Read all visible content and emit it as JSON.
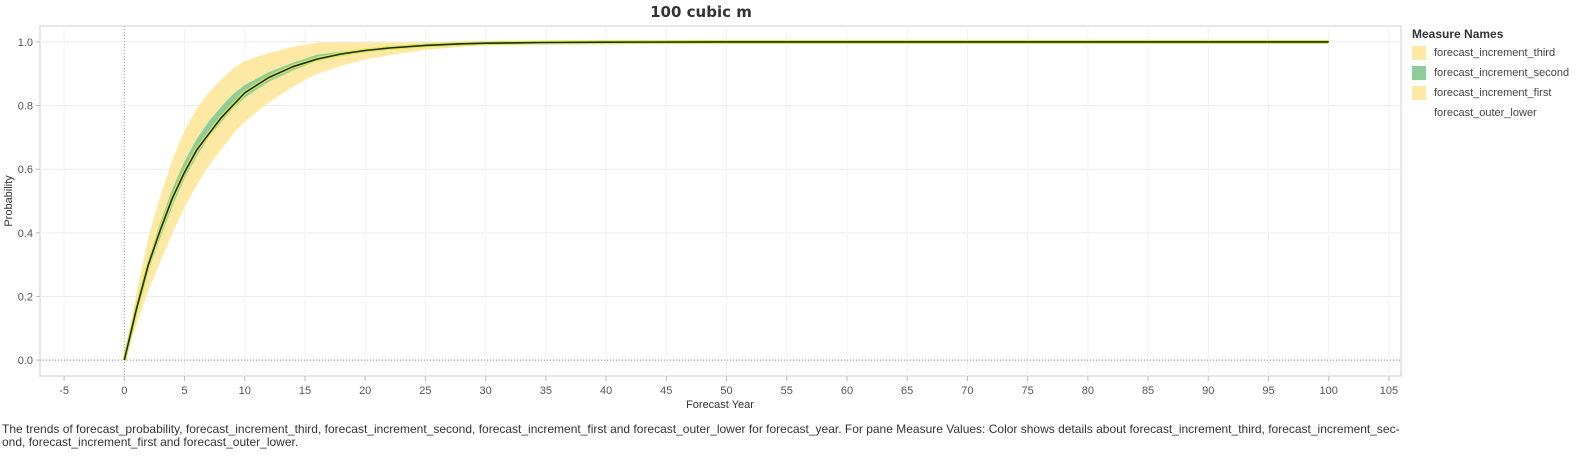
{
  "chart_data": {
    "type": "area",
    "title": "100 cubic m",
    "xlabel": "Forecast Year",
    "ylabel": "Probability",
    "xlim": [
      -7,
      106
    ],
    "ylim": [
      -0.05,
      1.05
    ],
    "x_ticks": [
      -5,
      0,
      5,
      10,
      15,
      20,
      25,
      30,
      35,
      40,
      45,
      50,
      55,
      60,
      65,
      70,
      75,
      80,
      85,
      90,
      95,
      100,
      105
    ],
    "y_ticks": [
      "0.0",
      "0.2",
      "0.4",
      "0.6",
      "0.8",
      "1.0"
    ],
    "grid": true,
    "legend_position": "right",
    "x": [
      0,
      1,
      2,
      3,
      4,
      5,
      6,
      7,
      8,
      9,
      10,
      12,
      14,
      16,
      18,
      20,
      22,
      25,
      28,
      30,
      35,
      40,
      50,
      60,
      70,
      80,
      90,
      100
    ],
    "series": [
      {
        "name": "forecast_probability",
        "values": [
          0,
          0.16,
          0.3,
          0.41,
          0.51,
          0.59,
          0.66,
          0.71,
          0.76,
          0.8,
          0.84,
          0.888,
          0.922,
          0.946,
          0.962,
          0.973,
          0.981,
          0.989,
          0.994,
          0.996,
          0.998,
          0.999,
          1.0,
          1.0,
          1.0,
          1.0,
          1.0,
          1.0
        ]
      },
      {
        "name": "forecast_outer_lower",
        "values": [
          0,
          0.11,
          0.22,
          0.31,
          0.4,
          0.48,
          0.55,
          0.61,
          0.66,
          0.71,
          0.75,
          0.81,
          0.86,
          0.9,
          0.925,
          0.945,
          0.958,
          0.975,
          0.985,
          0.99,
          0.996,
          0.998,
          1.0,
          1.0,
          1.0,
          1.0,
          1.0,
          1.0
        ]
      },
      {
        "name": "forecast_increment_first",
        "values": [
          0,
          0.035,
          0.06,
          0.075,
          0.085,
          0.09,
          0.09,
          0.09,
          0.085,
          0.08,
          0.075,
          0.065,
          0.05,
          0.04,
          0.03,
          0.022,
          0.017,
          0.01,
          0.006,
          0.004,
          0.001,
          0.0005,
          0,
          0,
          0,
          0,
          0,
          0
        ]
      },
      {
        "name": "forecast_increment_second",
        "values": [
          0,
          0.025,
          0.04,
          0.05,
          0.055,
          0.055,
          0.055,
          0.05,
          0.05,
          0.045,
          0.04,
          0.03,
          0.025,
          0.02,
          0.015,
          0.01,
          0.008,
          0.005,
          0.003,
          0.002,
          0.001,
          0.0003,
          0,
          0,
          0,
          0,
          0,
          0
        ]
      },
      {
        "name": "forecast_increment_third",
        "values": [
          0,
          0.04,
          0.065,
          0.08,
          0.09,
          0.095,
          0.095,
          0.09,
          0.085,
          0.08,
          0.075,
          0.06,
          0.05,
          0.038,
          0.028,
          0.021,
          0.015,
          0.009,
          0.005,
          0.003,
          0.001,
          0.0004,
          0,
          0,
          0,
          0,
          0,
          0
        ]
      }
    ],
    "legend": {
      "title": "Measure Names",
      "items": [
        {
          "label": "forecast_increment_third",
          "color": "#fde9a3"
        },
        {
          "label": "forecast_increment_second",
          "color": "#8fcc9b"
        },
        {
          "label": "forecast_increment_first",
          "color": "#fde9a3"
        },
        {
          "label": "forecast_outer_lower",
          "color": "#ffffff"
        }
      ]
    },
    "colors": {
      "increment_third": "#fde9a3",
      "increment_second": "#8fcc9b",
      "increment_first": "#fde9a3",
      "probability_line": "#1a2a1a",
      "glow": "#dde84a"
    }
  },
  "caption": "The trends of forecast_probability, forecast_increment_third, forecast_increment_second, forecast_increment_first and forecast_outer_lower for forecast_year.  For pane Measure Values:  Color shows details about forecast_increment_third, forecast_increment_sec-ond, forecast_increment_first and forecast_outer_lower."
}
